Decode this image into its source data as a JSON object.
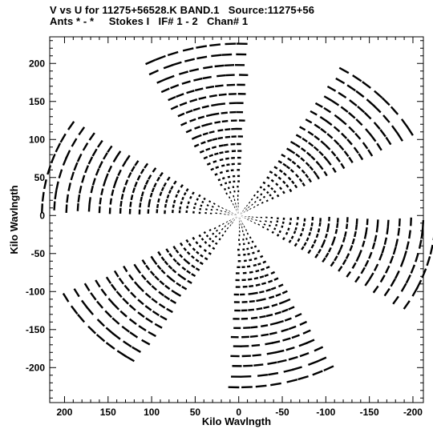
{
  "header": {
    "line1": "V vs U for 11275+56528.K BAND.1   Source:11275+56",
    "line2": "Ants * - *     Stokes I   IF# 1 - 2   Chan# 1"
  },
  "chart_data": {
    "type": "scatter",
    "title": "V vs U for 11275+56528.K BAND.1   Source:11275+56",
    "subtitle": "Ants * - *     Stokes I   IF# 1 - 2   Chan# 1",
    "xlabel": "Kilo Wavlngth",
    "ylabel": "Kilo Wavlngth",
    "xlim": [
      217,
      -212
    ],
    "ylim": [
      -246,
      235
    ],
    "x_ticks": [
      200,
      150,
      100,
      50,
      0,
      -50,
      -100,
      -150,
      -200
    ],
    "y_ticks": [
      200,
      150,
      100,
      50,
      0,
      -50,
      -100,
      -150,
      -200
    ],
    "x_tick_labels": [
      "200",
      "150",
      "100",
      "50",
      "0",
      "-50",
      "-100",
      "-150",
      "-200"
    ],
    "y_tick_labels": [
      "200",
      "150",
      "100",
      "50",
      "0",
      "-50",
      "-100",
      "-150",
      "-200"
    ],
    "grid": false,
    "mark_color": "#000000",
    "arm_center_angles_deg": [
      17,
      77,
      137
    ],
    "arm_half_width_deg": 16,
    "arc_sweep_deg": 3.2,
    "arm_radii_kilo_wavelength": [
      4,
      8,
      12,
      16,
      21,
      26,
      32,
      38,
      45,
      52,
      60,
      68,
      76,
      85,
      94,
      104,
      114,
      125,
      136,
      148,
      160,
      172,
      185,
      198,
      212,
      226
    ],
    "arms_visible_at_radius_max": 6
  }
}
